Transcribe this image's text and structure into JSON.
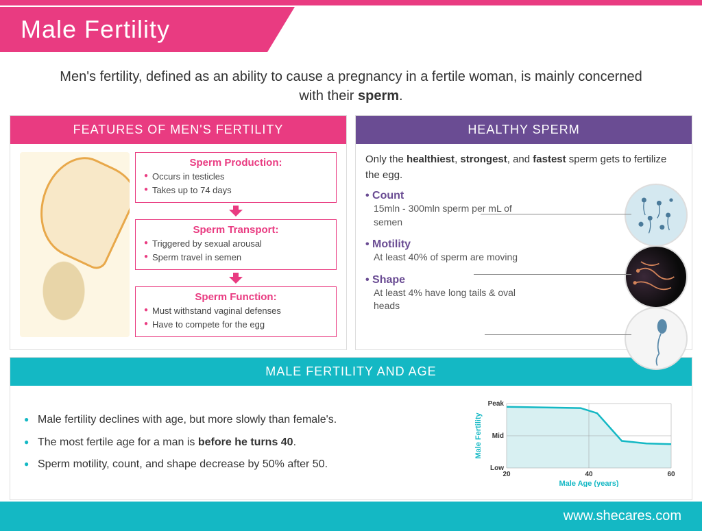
{
  "colors": {
    "pink": "#e93b81",
    "purple": "#6a4c93",
    "teal": "#14b8c4"
  },
  "title": "Male Fertility",
  "subtitle_pre": "Men's fertility, defined as an ability to cause a pregnancy in a fertile woman, is mainly concerned with their ",
  "subtitle_bold": "sperm",
  "subtitle_post": ".",
  "features": {
    "header": "FEATURES OF MEN'S FERTILITY",
    "boxes": [
      {
        "title": "Sperm Production:",
        "items": [
          "Occurs in testicles",
          "Takes up to 74 days"
        ]
      },
      {
        "title": "Sperm Transport:",
        "items": [
          "Triggered by sexual arousal",
          "Sperm travel in semen"
        ]
      },
      {
        "title": "Sperm Function:",
        "items": [
          "Must withstand vaginal defenses",
          "Have to compete for the egg"
        ]
      }
    ]
  },
  "healthy": {
    "header": "HEALTHY SPERM",
    "intro_parts": [
      "Only the ",
      "healthiest",
      ", ",
      "strongest",
      ", and ",
      "fastest",
      " sperm gets to fertilize the egg."
    ],
    "items": [
      {
        "title": "Count",
        "desc": "15mln - 300mln sperm per mL of semen"
      },
      {
        "title": "Motility",
        "desc": "At least 40% of sperm are moving"
      },
      {
        "title": "Shape",
        "desc": "At least 4% have long tails & oval heads"
      }
    ]
  },
  "age": {
    "header": "MALE FERTILITY AND AGE",
    "bullets": [
      {
        "pre": "Male fertility declines with age, but more slowly than female's.",
        "bold": "",
        "post": ""
      },
      {
        "pre": "The most fertile age for a man is ",
        "bold": "before he turns 40",
        "post": "."
      },
      {
        "pre": "Sperm motility, count, and shape decrease by 50% after 50.",
        "bold": "",
        "post": ""
      }
    ],
    "chart": {
      "ylabel": "Male Fertility",
      "xlabel": "Male Age (years)",
      "yticks": [
        "Peak",
        "Mid",
        "Low"
      ],
      "xticks": [
        "20",
        "40",
        "60"
      ],
      "line_color": "#14b8c4",
      "fill_color": "#d8f0f2",
      "points": [
        [
          0,
          0.95
        ],
        [
          0.45,
          0.93
        ],
        [
          0.55,
          0.85
        ],
        [
          0.7,
          0.42
        ],
        [
          0.85,
          0.38
        ],
        [
          1,
          0.37
        ]
      ]
    }
  },
  "footer": "www.shecares.com"
}
